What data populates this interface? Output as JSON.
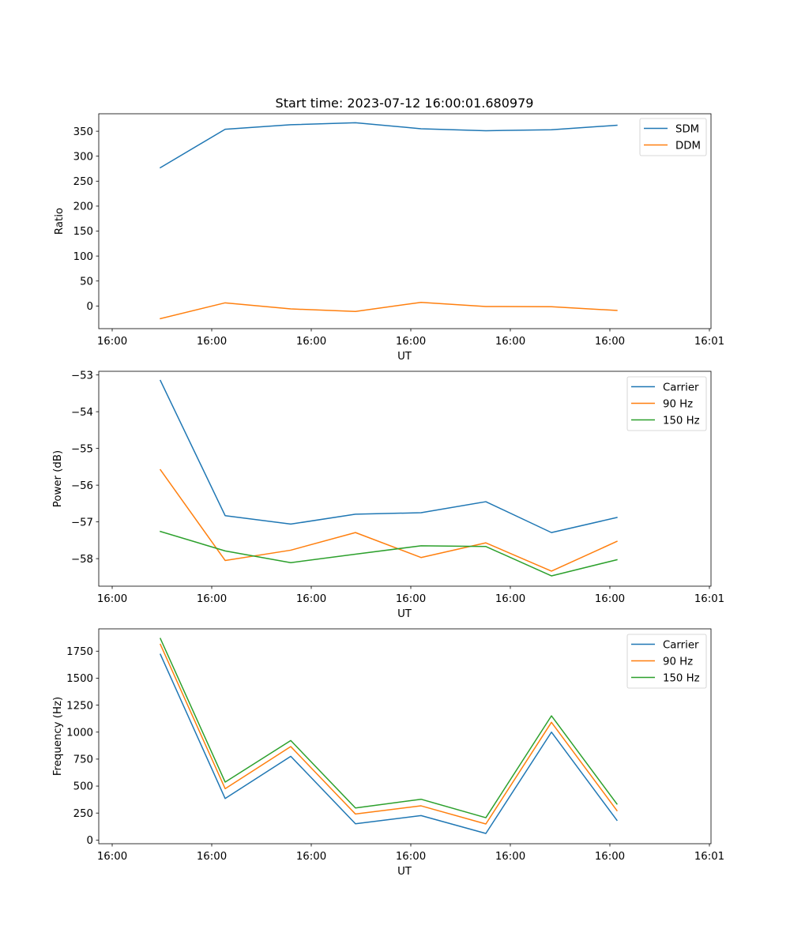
{
  "figure_title": "Start time: 2023-07-12 16:00:01.680979",
  "chart_data": [
    {
      "type": "line",
      "title": "Start time: 2023-07-12 16:00:01.680979",
      "xlabel": "UT",
      "ylabel": "Ratio",
      "x_unit": "seconds after 16:00:00",
      "x": [
        4.84,
        11.35,
        17.94,
        24.44,
        31.03,
        37.54,
        44.13,
        50.71
      ],
      "xlim": [
        -1.35,
        60.16
      ],
      "xticks": [
        0,
        10,
        20,
        30,
        40,
        50,
        60
      ],
      "xtick_labels": [
        "16:00",
        "16:00",
        "16:00",
        "16:00",
        "16:00",
        "16:00",
        "16:01"
      ],
      "ylim": [
        -45.4,
        385
      ],
      "yticks": [
        0,
        50,
        100,
        150,
        200,
        250,
        300,
        350
      ],
      "ytick_labels": [
        "0",
        "50",
        "100",
        "150",
        "200",
        "250",
        "300",
        "350"
      ],
      "grid": false,
      "legend_position": "upper-right",
      "series": [
        {
          "name": "SDM",
          "color": "#1f77b4",
          "values": [
            277,
            354,
            363,
            367,
            355,
            351,
            353,
            362
          ]
        },
        {
          "name": "DDM",
          "color": "#ff7f0e",
          "values": [
            -25.3,
            6.3,
            -5.9,
            -11.0,
            7.3,
            -1.0,
            -1.5,
            -9.0
          ]
        }
      ]
    },
    {
      "type": "line",
      "title": "",
      "xlabel": "UT",
      "ylabel": "Power (dB)",
      "x_unit": "seconds after 16:00:00",
      "x": [
        4.84,
        11.35,
        17.94,
        24.44,
        31.03,
        37.54,
        44.13,
        50.71
      ],
      "xlim": [
        -1.35,
        60.16
      ],
      "xticks": [
        0,
        10,
        20,
        30,
        40,
        50,
        60
      ],
      "xtick_labels": [
        "16:00",
        "16:00",
        "16:00",
        "16:00",
        "16:00",
        "16:00",
        "16:01"
      ],
      "ylim": [
        -58.75,
        -52.9
      ],
      "yticks": [
        -58,
        -57,
        -56,
        -55,
        -54,
        -53
      ],
      "ytick_labels": [
        "−58",
        "−57",
        "−56",
        "−55",
        "−54",
        "−53"
      ],
      "grid": false,
      "legend_position": "upper-right",
      "series": [
        {
          "name": "Carrier",
          "color": "#1f77b4",
          "values": [
            -53.15,
            -56.83,
            -57.06,
            -56.79,
            -56.75,
            -56.45,
            -57.29,
            -56.88
          ]
        },
        {
          "name": "90 Hz",
          "color": "#ff7f0e",
          "values": [
            -55.58,
            -58.05,
            -57.77,
            -57.29,
            -57.97,
            -57.57,
            -58.34,
            -57.53
          ]
        },
        {
          "name": "150 Hz",
          "color": "#2ca02c",
          "values": [
            -57.26,
            -57.79,
            -58.11,
            -57.88,
            -57.65,
            -57.67,
            -58.47,
            -58.03
          ]
        }
      ]
    },
    {
      "type": "line",
      "title": "",
      "xlabel": "UT",
      "ylabel": "Frequency (Hz)",
      "x_unit": "seconds after 16:00:00",
      "x": [
        4.84,
        11.35,
        17.94,
        24.44,
        31.03,
        37.54,
        44.13,
        50.71
      ],
      "xlim": [
        -1.35,
        60.16
      ],
      "xticks": [
        0,
        10,
        20,
        30,
        40,
        50,
        60
      ],
      "xtick_labels": [
        "16:00",
        "16:00",
        "16:00",
        "16:00",
        "16:00",
        "16:00",
        "16:01"
      ],
      "ylim": [
        -34,
        1957
      ],
      "yticks": [
        0,
        250,
        500,
        750,
        1000,
        1250,
        1500,
        1750
      ],
      "ytick_labels": [
        "0",
        "250",
        "500",
        "750",
        "1000",
        "1250",
        "1500",
        "1750"
      ],
      "grid": false,
      "legend_position": "upper-right",
      "series": [
        {
          "name": "Carrier",
          "color": "#1f77b4",
          "values": [
            1721,
            385,
            776,
            151,
            227,
            61,
            1000,
            183
          ]
        },
        {
          "name": "90 Hz",
          "color": "#ff7f0e",
          "values": [
            1813,
            476,
            866,
            241,
            317,
            149,
            1091,
            273
          ]
        },
        {
          "name": "150 Hz",
          "color": "#2ca02c",
          "values": [
            1867,
            537,
            922,
            297,
            378,
            207,
            1151,
            334
          ]
        }
      ]
    }
  ]
}
